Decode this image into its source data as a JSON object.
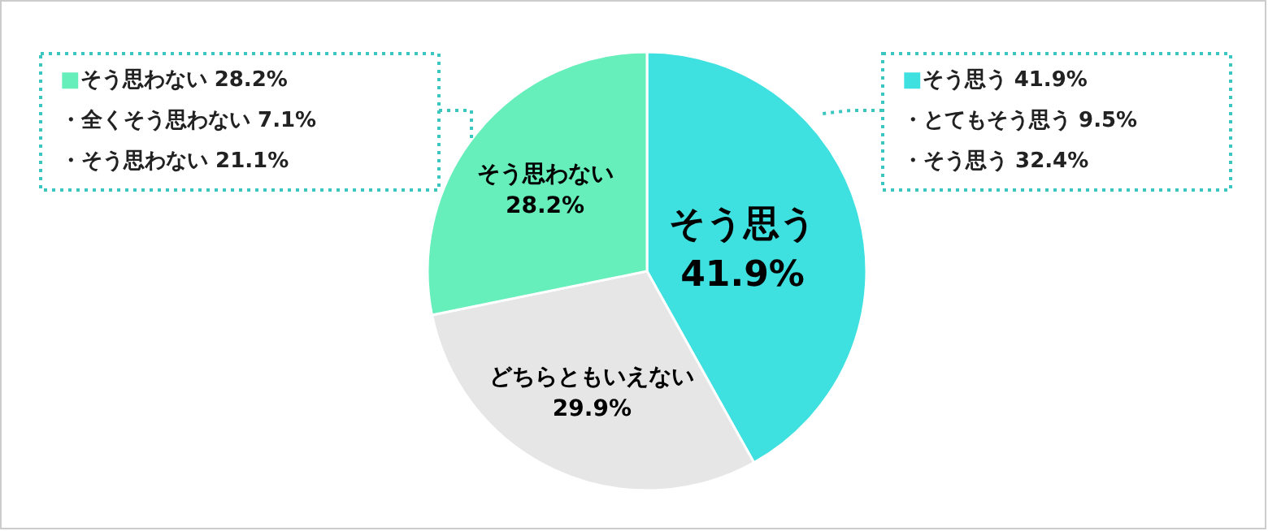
{
  "chart_data": {
    "type": "pie",
    "categories": [
      "そう思う",
      "どちらともいえない",
      "そう思わない"
    ],
    "values": [
      41.9,
      29.9,
      28.2
    ],
    "colors": [
      "#3ee0e0",
      "#e6e6e6",
      "#66eebb"
    ],
    "value_labels": [
      "41.9%",
      "29.9%",
      "28.2%"
    ],
    "annotations": [
      "■そう思わない 28.2%",
      "・全くそう思わない 7.1%",
      "・そう思わない 21.1%",
      "■そう思う 41.9%",
      "・とてもそう思う 9.5%",
      "・そう思う 32.4%"
    ]
  }
}
